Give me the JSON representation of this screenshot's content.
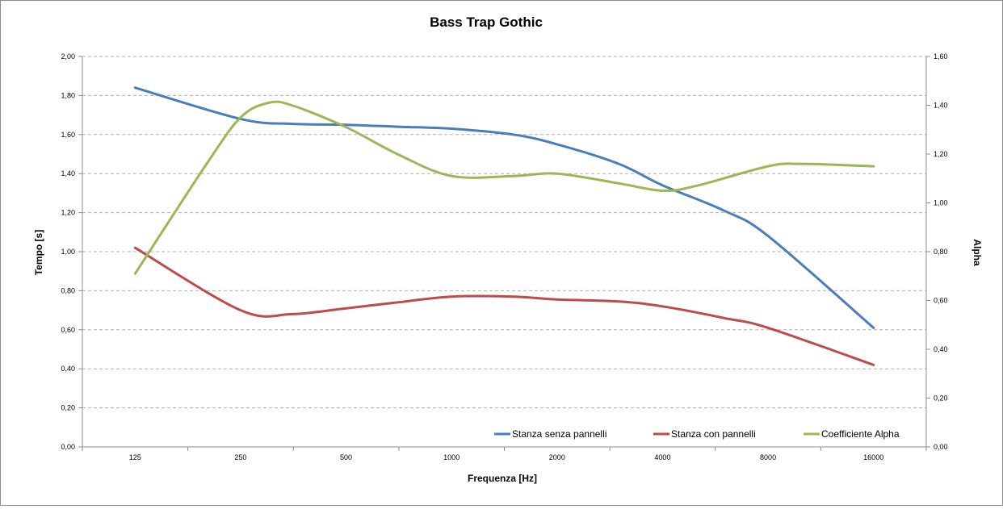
{
  "chart_data": {
    "type": "line",
    "title": "Bass Trap Gothic",
    "xlabel": "Frequenza [Hz]",
    "ylabel": "Tempo [s]",
    "y2label": "Alpha",
    "categories": [
      "125",
      "250",
      "500",
      "1000",
      "2000",
      "4000",
      "8000",
      "16000"
    ],
    "ylim": [
      0,
      2
    ],
    "y2lim": [
      0,
      1.6
    ],
    "yticks": [
      "0,00",
      "0,20",
      "0,40",
      "0,60",
      "0,80",
      "1,00",
      "1,20",
      "1,40",
      "1,60",
      "1,80",
      "2,00"
    ],
    "y2ticks": [
      "0,00",
      "0,20",
      "0,40",
      "0,60",
      "0,80",
      "1,00",
      "1,20",
      "1,40",
      "1,60"
    ],
    "grid": true,
    "legend_position": "bottom-right",
    "series": [
      {
        "name": "Stanza senza pannelli",
        "axis": "left",
        "color": "#4a7ebb",
        "x": [
          125,
          250,
          350,
          500,
          700,
          1000,
          1500,
          2000,
          3000,
          4000,
          6000,
          8000,
          16000
        ],
        "values": [
          1.84,
          1.68,
          1.655,
          1.65,
          1.64,
          1.63,
          1.6,
          1.55,
          1.45,
          1.34,
          1.21,
          1.08,
          0.61
        ]
      },
      {
        "name": "Stanza con pannelli",
        "axis": "left",
        "color": "#be4b48",
        "x": [
          125,
          250,
          350,
          500,
          700,
          1000,
          1500,
          2000,
          3000,
          4000,
          6000,
          8000,
          16000
        ],
        "values": [
          1.02,
          0.7,
          0.68,
          0.71,
          0.74,
          0.77,
          0.77,
          0.755,
          0.745,
          0.72,
          0.66,
          0.61,
          0.42
        ]
      },
      {
        "name": "Coefficiente Alpha",
        "axis": "right",
        "color": "#98b954",
        "x": [
          125,
          200,
          250,
          300,
          350,
          500,
          700,
          1000,
          1500,
          2000,
          3000,
          4000,
          5000,
          8000,
          10000,
          16000
        ],
        "values": [
          0.71,
          1.16,
          1.35,
          1.41,
          1.4,
          1.31,
          1.2,
          1.11,
          1.11,
          1.12,
          1.08,
          1.05,
          1.07,
          1.15,
          1.16,
          1.15
        ]
      }
    ]
  }
}
